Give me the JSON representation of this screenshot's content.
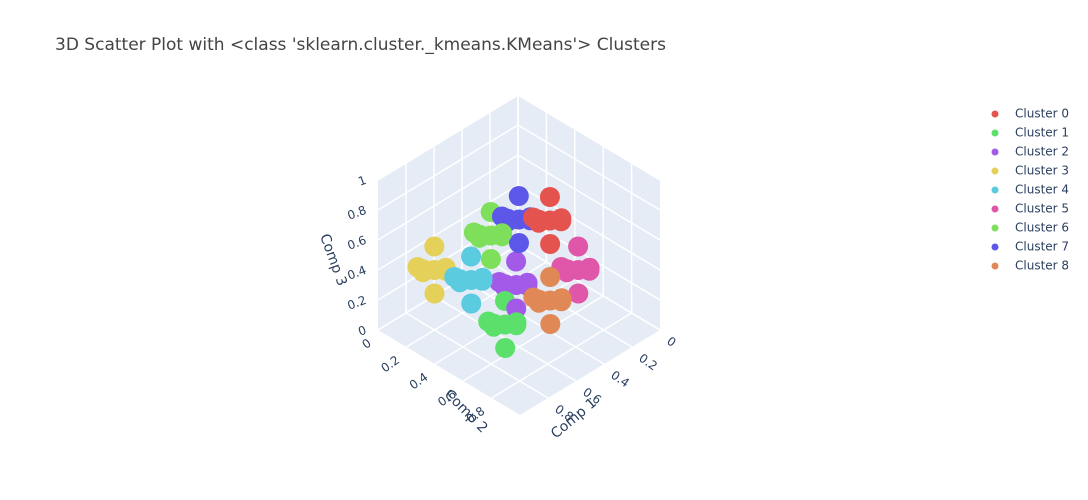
{
  "chart_data": {
    "type": "scatter3d",
    "title": "3D Scatter Plot with <class 'sklearn.cluster._kmeans.KMeans'> Clusters",
    "xlabel": "Comp 1",
    "ylabel": "Comp 2",
    "zlabel": "Comp 3",
    "xlim": [
      0,
      1
    ],
    "ylim": [
      0,
      1
    ],
    "zlim": [
      0,
      1
    ],
    "xticks": [
      0,
      0.2,
      0.4,
      0.6,
      0.8
    ],
    "yticks": [
      0,
      0.2,
      0.4,
      0.6,
      0.8
    ],
    "zticks": [
      0,
      0.2,
      0.4,
      0.6,
      0.8,
      1
    ],
    "grid": true,
    "legend": "right",
    "series": [
      {
        "name": "Cluster 0",
        "color": "#e5534f",
        "x": [
          0.39,
          0.47,
          0.31,
          0.39,
          0.39,
          0.44,
          0.34,
          0.45
        ],
        "y": [
          0.61,
          0.61,
          0.61,
          0.69,
          0.53,
          0.66,
          0.56,
          0.55
        ],
        "z": [
          0.73,
          0.78,
          0.68,
          0.79,
          0.67,
          0.63,
          0.83,
          0.75
        ]
      },
      {
        "name": "Cluster 1",
        "color": "#5ce06c",
        "x": [
          0.65,
          0.73,
          0.57,
          0.65,
          0.65,
          0.7,
          0.6,
          0.71
        ],
        "y": [
          0.55,
          0.55,
          0.55,
          0.63,
          0.47,
          0.6,
          0.5,
          0.49
        ],
        "z": [
          0.15,
          0.2,
          0.1,
          0.21,
          0.09,
          0.05,
          0.25,
          0.17
        ]
      },
      {
        "name": "Cluster 2",
        "color": "#a35ae8",
        "x": [
          0.51,
          0.59,
          0.43,
          0.51,
          0.51,
          0.56,
          0.46,
          0.57
        ],
        "y": [
          0.49,
          0.49,
          0.49,
          0.57,
          0.41,
          0.54,
          0.44,
          0.43
        ],
        "z": [
          0.3,
          0.35,
          0.25,
          0.36,
          0.24,
          0.2,
          0.4,
          0.32
        ]
      },
      {
        "name": "Cluster 3",
        "color": "#e5d15a",
        "x": [
          0.8,
          0.88,
          0.72,
          0.8,
          0.8,
          0.85,
          0.75,
          0.86
        ],
        "y": [
          0.2,
          0.2,
          0.2,
          0.28,
          0.12,
          0.25,
          0.15,
          0.14
        ],
        "z": [
          0.4,
          0.45,
          0.35,
          0.46,
          0.34,
          0.3,
          0.5,
          0.42
        ]
      },
      {
        "name": "Cluster 4",
        "color": "#5bcbe0",
        "x": [
          0.72,
          0.8,
          0.64,
          0.72,
          0.72,
          0.77,
          0.67,
          0.78
        ],
        "y": [
          0.38,
          0.38,
          0.38,
          0.46,
          0.3,
          0.43,
          0.33,
          0.32
        ],
        "z": [
          0.39,
          0.44,
          0.34,
          0.45,
          0.33,
          0.29,
          0.49,
          0.41
        ]
      },
      {
        "name": "Cluster 5",
        "color": "#e056a8",
        "x": [
          0.29,
          0.37,
          0.21,
          0.29,
          0.29,
          0.34,
          0.24,
          0.35
        ],
        "y": [
          0.71,
          0.71,
          0.71,
          0.79,
          0.63,
          0.76,
          0.66,
          0.65
        ],
        "z": [
          0.4,
          0.45,
          0.35,
          0.46,
          0.34,
          0.3,
          0.5,
          0.42
        ]
      },
      {
        "name": "Cluster 6",
        "color": "#7ee05a",
        "x": [
          0.6,
          0.68,
          0.52,
          0.6,
          0.6,
          0.65,
          0.55,
          0.66
        ],
        "y": [
          0.4,
          0.4,
          0.4,
          0.48,
          0.32,
          0.45,
          0.35,
          0.34
        ],
        "z": [
          0.63,
          0.68,
          0.58,
          0.69,
          0.57,
          0.53,
          0.73,
          0.65
        ]
      },
      {
        "name": "Cluster 7",
        "color": "#5c57e8",
        "x": [
          0.45,
          0.53,
          0.37,
          0.45,
          0.45,
          0.5,
          0.4,
          0.51
        ],
        "y": [
          0.45,
          0.45,
          0.45,
          0.53,
          0.37,
          0.5,
          0.4,
          0.39
        ],
        "z": [
          0.68,
          0.73,
          0.63,
          0.74,
          0.62,
          0.58,
          0.78,
          0.7
        ]
      },
      {
        "name": "Cluster 8",
        "color": "#e08956",
        "x": [
          0.49,
          0.57,
          0.41,
          0.49,
          0.49,
          0.54,
          0.44,
          0.55
        ],
        "y": [
          0.71,
          0.71,
          0.71,
          0.79,
          0.63,
          0.76,
          0.66,
          0.65
        ],
        "z": [
          0.31,
          0.36,
          0.26,
          0.37,
          0.25,
          0.21,
          0.41,
          0.33
        ]
      }
    ]
  }
}
